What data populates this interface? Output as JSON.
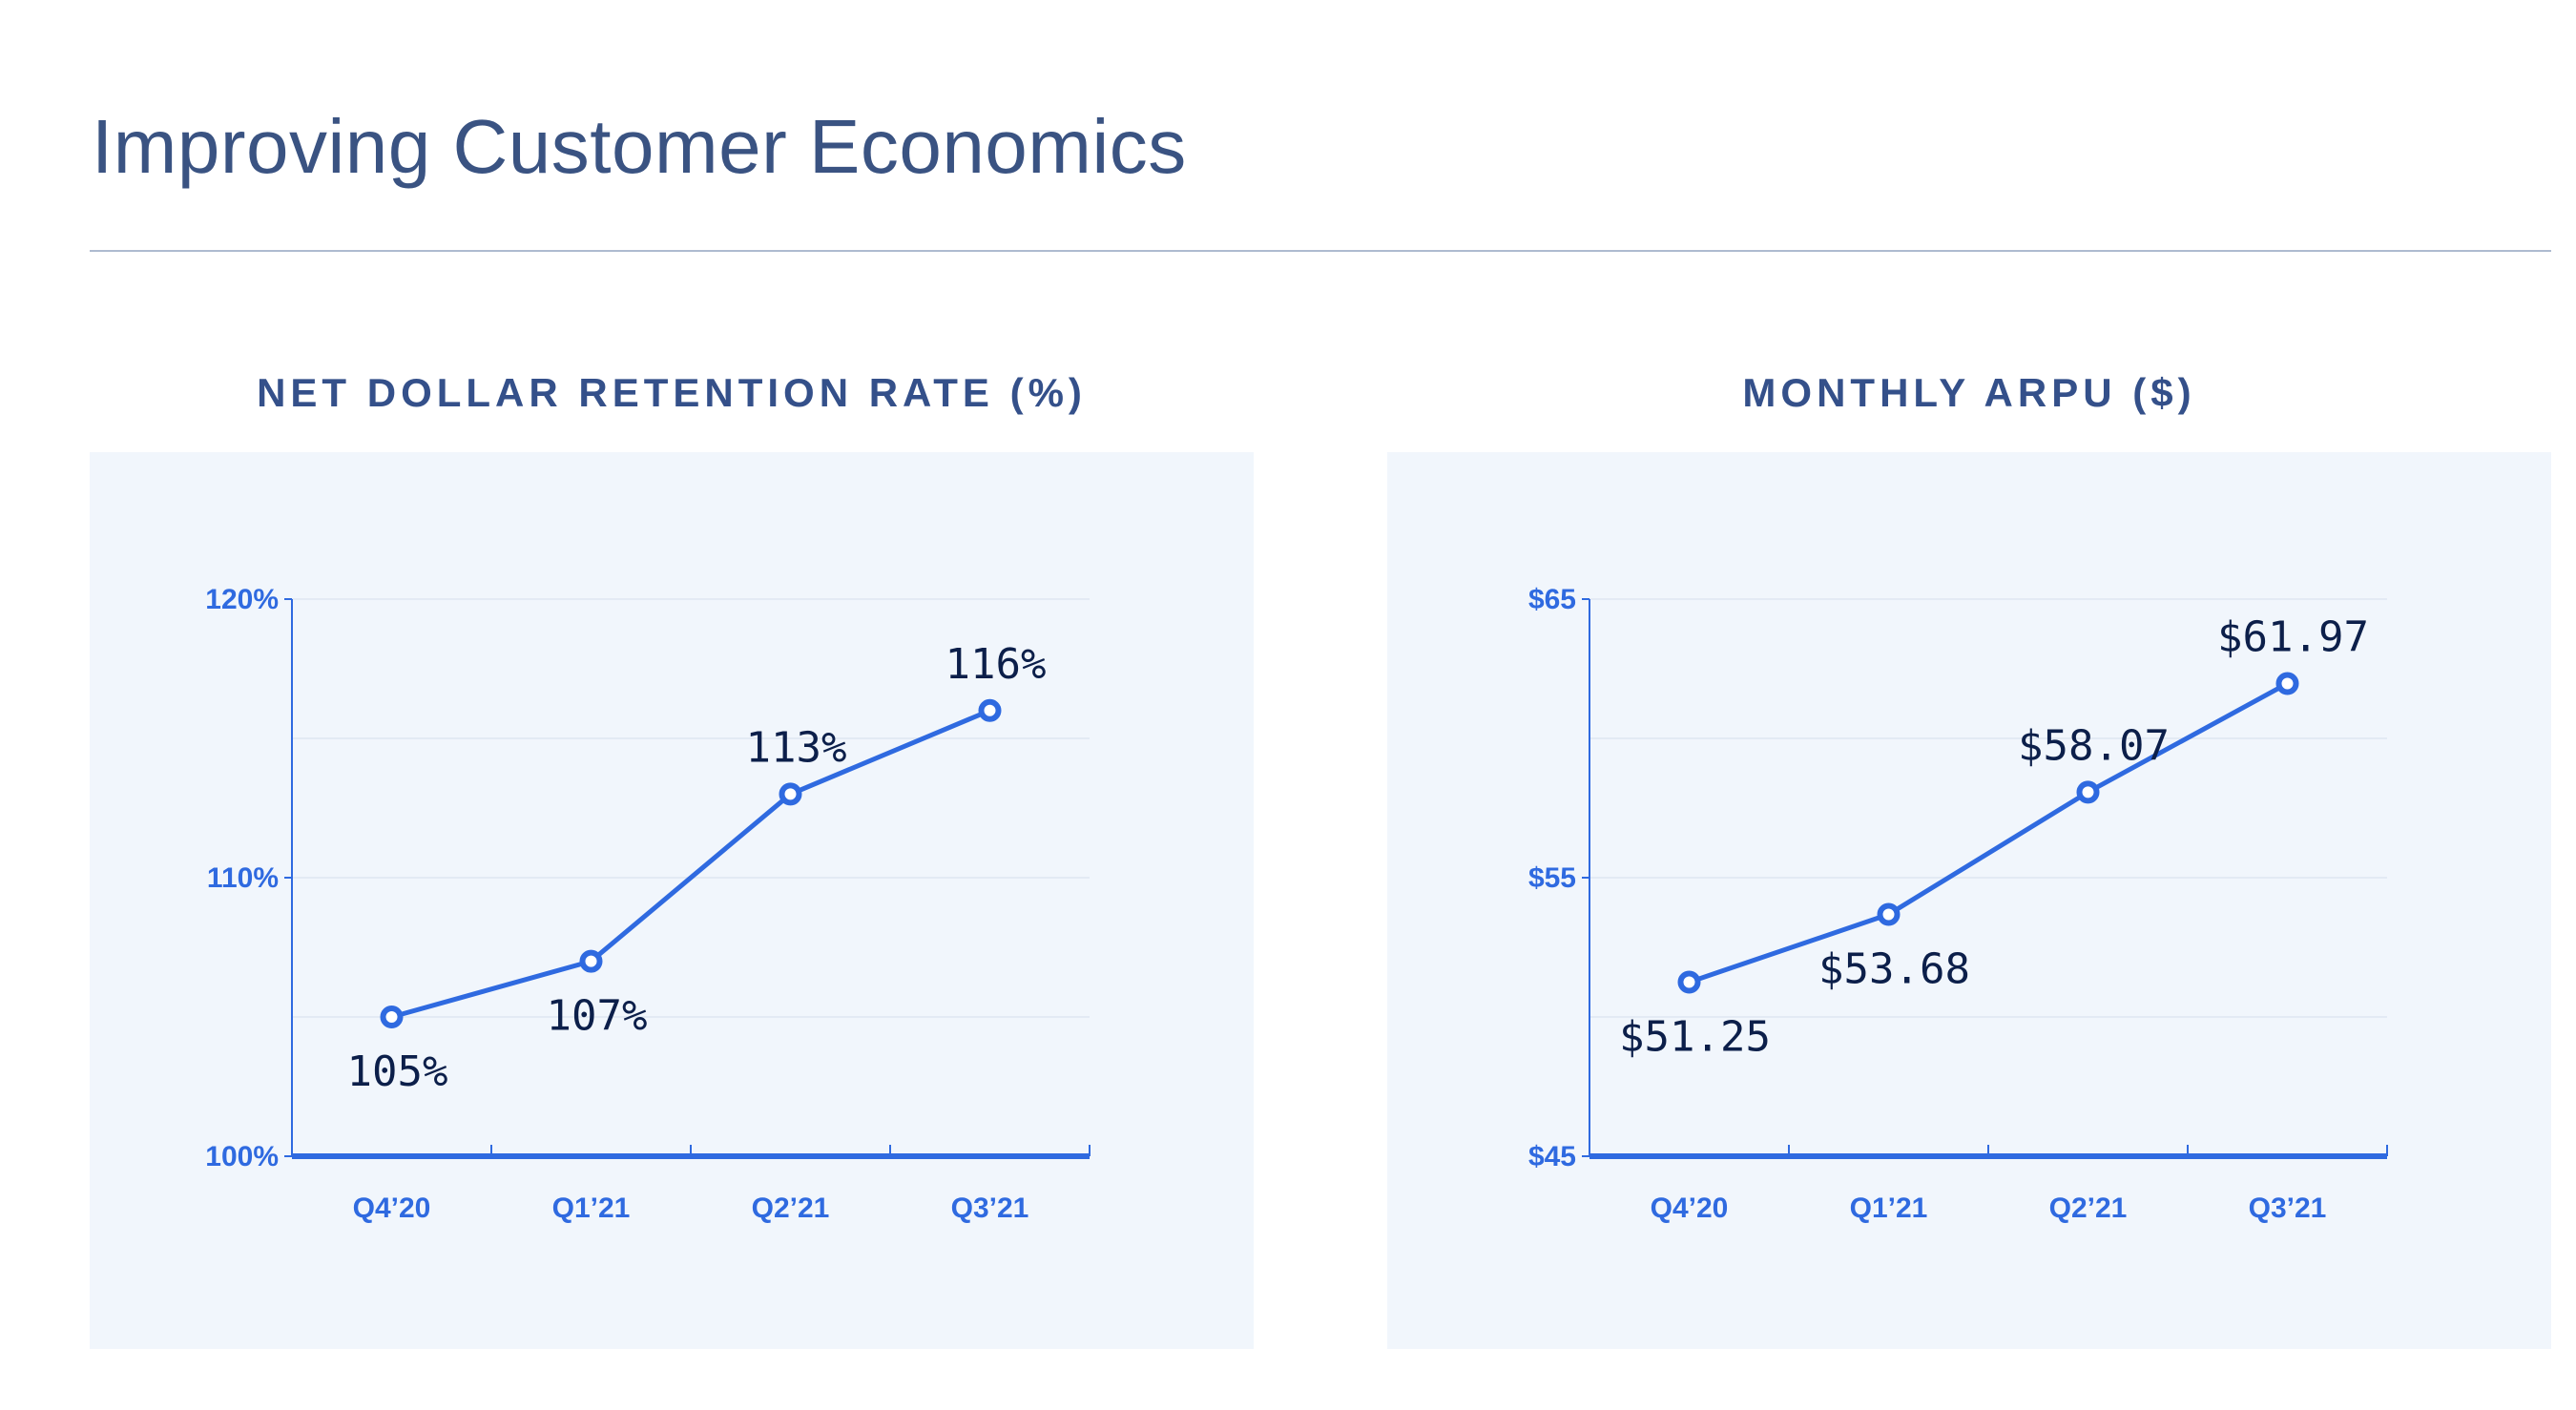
{
  "page": {
    "title": "Improving Customer Economics"
  },
  "colors": {
    "title": "#3a5382",
    "chart_title": "#34508a",
    "panel_bg": "#f1f6fc",
    "accent": "#2f6ae0",
    "data_label": "#0c1f4a",
    "gridline": "#e3eaf4"
  },
  "chart_data": [
    {
      "type": "line",
      "title": "NET DOLLAR RETENTION RATE (%)",
      "categories": [
        "Q4’20",
        "Q1’21",
        "Q2’21",
        "Q3’21"
      ],
      "values": [
        105,
        107,
        113,
        116
      ],
      "data_labels": [
        "105%",
        "107%",
        "113%",
        "116%"
      ],
      "ylim": [
        100,
        120
      ],
      "yticks": [
        100,
        110,
        120
      ],
      "ytick_labels": [
        "100%",
        "110%",
        "120%"
      ],
      "ygrid_step": 5,
      "label_position": [
        "below",
        "below",
        "above",
        "above"
      ],
      "grid": true,
      "legend": "none"
    },
    {
      "type": "line",
      "title": "MONTHLY ARPU ($)",
      "categories": [
        "Q4’20",
        "Q1’21",
        "Q2’21",
        "Q3’21"
      ],
      "values": [
        51.25,
        53.68,
        58.07,
        61.97
      ],
      "data_labels": [
        "$51.25",
        "$53.68",
        "$58.07",
        "$61.97"
      ],
      "ylim": [
        45,
        65
      ],
      "yticks": [
        45,
        55,
        65
      ],
      "ytick_labels": [
        "$45",
        "$55",
        "$65"
      ],
      "ygrid_step": 5,
      "label_position": [
        "below",
        "below",
        "above",
        "above"
      ],
      "grid": true,
      "legend": "none"
    }
  ]
}
